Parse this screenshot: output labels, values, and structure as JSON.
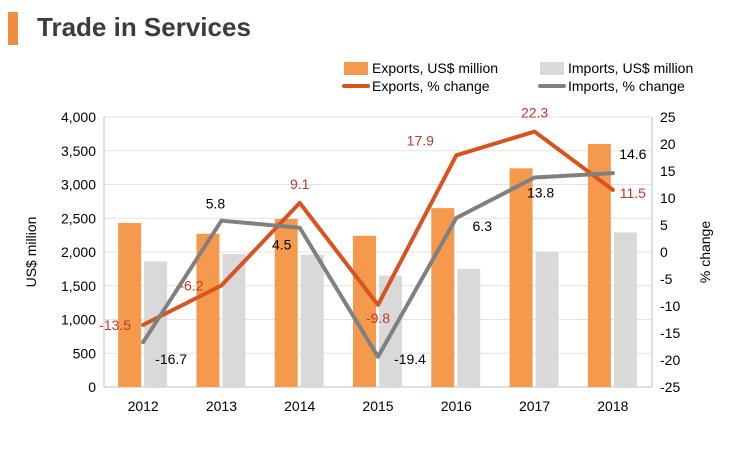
{
  "title": "Trade in Services",
  "colors": {
    "accent": "#f18e3e",
    "exports_bar": "#f59a4d",
    "imports_bar": "#d9d9d9",
    "exports_line": "#d9531e",
    "imports_line": "#808080",
    "exports_label": "#c0392b",
    "imports_label": "#000000"
  },
  "chart_data": {
    "type": "bar+line",
    "categories": [
      "2012",
      "2013",
      "2014",
      "2015",
      "2016",
      "2017",
      "2018"
    ],
    "series": [
      {
        "name": "Exports, US$ million",
        "kind": "bar",
        "axis": "left",
        "values": [
          2430,
          2270,
          2490,
          2240,
          2650,
          3240,
          3600
        ]
      },
      {
        "name": "Imports, US$ million",
        "kind": "bar",
        "axis": "left",
        "values": [
          1860,
          1970,
          1960,
          1650,
          1750,
          2000,
          2290
        ]
      },
      {
        "name": "Exports, % change",
        "kind": "line",
        "axis": "right",
        "values": [
          -13.5,
          -6.2,
          9.1,
          -9.8,
          17.9,
          22.3,
          11.5
        ],
        "labels": [
          "-13.5",
          "-6.2",
          "9.1",
          "-9.8",
          "17.9",
          "22.3",
          "11.5"
        ]
      },
      {
        "name": "Imports, % change",
        "kind": "line",
        "axis": "right",
        "values": [
          -16.7,
          5.8,
          4.5,
          -19.4,
          6.3,
          13.8,
          14.6
        ],
        "labels": [
          "-16.7",
          "5.8",
          "4.5",
          "-19.4",
          "6.3",
          "13.8",
          "14.6"
        ]
      }
    ],
    "ylabel": "US$ million",
    "ylabel_right": "% change",
    "ylim": [
      0,
      4000
    ],
    "ylim_right": [
      -25,
      25
    ],
    "yticks": [
      "0",
      "500",
      "1,000",
      "1,500",
      "2,000",
      "2,500",
      "3,000",
      "3,500",
      "4,000"
    ],
    "yticks_values": [
      0,
      500,
      1000,
      1500,
      2000,
      2500,
      3000,
      3500,
      4000
    ],
    "yticks_right": [
      "-25",
      "-20",
      "-15",
      "-10",
      "-5",
      "0",
      "5",
      "10",
      "15",
      "20",
      "25"
    ],
    "yticks_right_values": [
      -25,
      -20,
      -15,
      -10,
      -5,
      0,
      5,
      10,
      15,
      20,
      25
    ],
    "grid": true,
    "legend_position": "top-right"
  }
}
